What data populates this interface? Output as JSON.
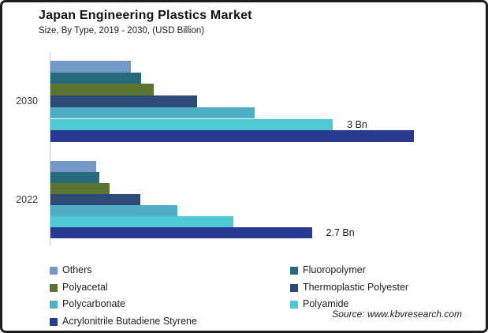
{
  "header": {
    "title": "Japan Engineering Plastics Market",
    "subtitle": "Size, By Type, 2019 - 2030, (USD Billion)"
  },
  "chart_data": {
    "type": "bar",
    "orientation": "horizontal",
    "unit": "USD Billion",
    "title": "Japan Engineering Plastics Market",
    "subtitle": "Size, By Type, 2019 - 2030, (USD Billion)",
    "categories": [
      "2030",
      "2022"
    ],
    "series": [
      {
        "name": "Others",
        "color": "#7498C8",
        "values": [
          0.84,
          0.48
        ]
      },
      {
        "name": "Fluoropolymer",
        "color": "#27697D",
        "values": [
          0.95,
          0.51
        ]
      },
      {
        "name": "Polyacetal",
        "color": "#5C742F",
        "values": [
          1.08,
          0.62
        ]
      },
      {
        "name": "Thermoplastic Polyester",
        "color": "#2C4A78",
        "values": [
          1.54,
          0.94
        ]
      },
      {
        "name": "Polycarbonate",
        "color": "#4DAEC6",
        "values": [
          2.14,
          1.33
        ]
      },
      {
        "name": "Polyamide",
        "color": "#4FC9D3",
        "values": [
          2.96,
          1.92
        ]
      },
      {
        "name": "Acrylonitrile Butadiene Styrene",
        "color": "#2A3A93",
        "values": [
          3.81,
          2.74
        ]
      }
    ],
    "data_labels": [
      {
        "category": "2030",
        "series": "Polyamide",
        "text": "3 Bn"
      },
      {
        "category": "2022",
        "series": "Acrylonitrile Butadiene Styrene",
        "text": "2.7 Bn"
      }
    ],
    "xlim": [
      0,
      4.6
    ],
    "grid": false,
    "legend_position": "bottom"
  },
  "legend": {
    "columns": [
      [
        "Others",
        "Polyacetal",
        "Polycarbonate",
        "Acrylonitrile Butadiene Styrene"
      ],
      [
        "Fluoropolymer",
        "Thermoplastic Polyester",
        "Polyamide"
      ]
    ]
  },
  "source": {
    "text": "Source: www.kbvresearch.com"
  }
}
